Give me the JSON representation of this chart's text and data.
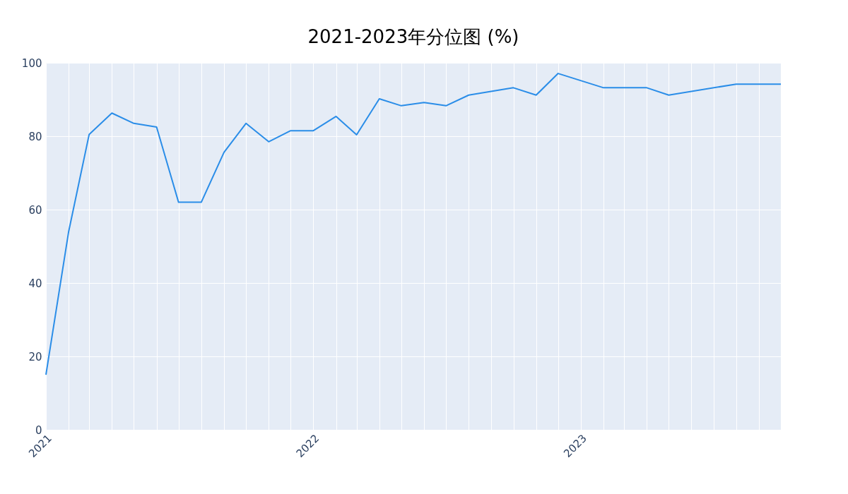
{
  "chart_data": {
    "type": "line",
    "title": "2021-2023年分位图 (%)",
    "x": [
      "2021-01",
      "2021-02",
      "2021-03",
      "2021-04",
      "2021-05",
      "2021-06",
      "2021-07",
      "2021-08",
      "2021-09",
      "2021-10",
      "2021-11",
      "2021-12",
      "2022-01",
      "2022-02",
      "2022-03",
      "2022-04",
      "2022-05",
      "2022-06",
      "2022-07",
      "2022-08",
      "2022-10",
      "2022-11",
      "2022-12",
      "2023-02",
      "2023-04",
      "2023-05",
      "2023-08",
      "2023-10"
    ],
    "series": [
      {
        "color": "#2a8de8",
        "values": [
          15,
          54,
          80.5,
          86.3,
          83.5,
          82.5,
          62,
          62,
          75.6,
          83.5,
          78.5,
          81.5,
          81.5,
          85.4,
          80.4,
          90.2,
          88.3,
          89.2,
          88.3,
          91.2,
          93.2,
          91.2,
          97.1,
          93.2,
          93.2,
          91.2,
          94.2,
          94.2
        ]
      }
    ],
    "xlim": [
      "2021-01",
      "2023-10"
    ],
    "xticks": [
      {
        "value": "2021-01",
        "label": "2021"
      },
      {
        "value": "2021-02",
        "label": null
      },
      {
        "value": "2021-03",
        "label": null
      },
      {
        "value": "2021-04",
        "label": null
      },
      {
        "value": "2021-05",
        "label": null
      },
      {
        "value": "2021-06",
        "label": null
      },
      {
        "value": "2021-07",
        "label": null
      },
      {
        "value": "2021-08",
        "label": null
      },
      {
        "value": "2021-09",
        "label": null
      },
      {
        "value": "2021-10",
        "label": null
      },
      {
        "value": "2021-11",
        "label": null
      },
      {
        "value": "2021-12",
        "label": null
      },
      {
        "value": "2022-01",
        "label": "2022"
      },
      {
        "value": "2022-02",
        "label": null
      },
      {
        "value": "2022-03",
        "label": null
      },
      {
        "value": "2022-04",
        "label": null
      },
      {
        "value": "2022-05",
        "label": null
      },
      {
        "value": "2022-06",
        "label": null
      },
      {
        "value": "2022-07",
        "label": null
      },
      {
        "value": "2022-08",
        "label": null
      },
      {
        "value": "2022-09",
        "label": null
      },
      {
        "value": "2022-10",
        "label": null
      },
      {
        "value": "2022-11",
        "label": null
      },
      {
        "value": "2022-12",
        "label": null
      },
      {
        "value": "2023-01",
        "label": "2023"
      },
      {
        "value": "2023-02",
        "label": null
      },
      {
        "value": "2023-03",
        "label": null
      },
      {
        "value": "2023-04",
        "label": null
      },
      {
        "value": "2023-05",
        "label": null
      },
      {
        "value": "2023-06",
        "label": null
      },
      {
        "value": "2023-07",
        "label": null
      },
      {
        "value": "2023-08",
        "label": null
      },
      {
        "value": "2023-09",
        "label": null
      },
      {
        "value": "2023-10",
        "label": null
      }
    ],
    "ylim": [
      0,
      100
    ],
    "yticks": [
      0,
      20,
      40,
      60,
      80,
      100
    ],
    "grid": true,
    "marker": "none",
    "line_style": "solid"
  }
}
